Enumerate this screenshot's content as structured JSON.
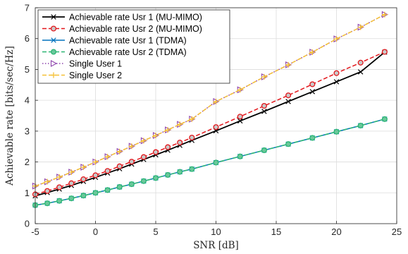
{
  "chart_data": {
    "type": "line",
    "title": "",
    "xlabel": "SNR [dB]",
    "ylabel": "Achievable rate [bits/sec/Hz]",
    "xlim": [
      -5,
      25
    ],
    "ylim": [
      0,
      7
    ],
    "xticks": [
      "-5",
      "0",
      "5",
      "10",
      "15",
      "20",
      "25"
    ],
    "yticks": [
      "0",
      "1",
      "2",
      "3",
      "4",
      "5",
      "6",
      "7"
    ],
    "grid": true,
    "legend_position": "top-left",
    "series": [
      {
        "name": "Achievable rate Usr 1 (MU-MIMO)",
        "color": "#000000",
        "line": "solid",
        "marker": "x",
        "x": [
          -5,
          -4,
          -3,
          -2,
          -1,
          0,
          1,
          2,
          3,
          4,
          5,
          6,
          7,
          8,
          10,
          12,
          14,
          16,
          18,
          20,
          22,
          24
        ],
        "y": [
          0.9,
          1.01,
          1.12,
          1.24,
          1.37,
          1.5,
          1.64,
          1.78,
          1.93,
          2.08,
          2.23,
          2.38,
          2.54,
          2.7,
          3.01,
          3.33,
          3.64,
          3.96,
          4.28,
          4.6,
          4.92,
          5.56
        ]
      },
      {
        "name": "Achievable rate Usr 2 (MU-MIMO)",
        "color": "#e3161b",
        "line": "dashed",
        "marker": "circle",
        "x": [
          -5,
          -4,
          -3,
          -2,
          -1,
          0,
          1,
          2,
          3,
          4,
          5,
          6,
          7,
          8,
          10,
          12,
          14,
          16,
          18,
          20,
          22,
          24
        ],
        "y": [
          0.95,
          1.06,
          1.18,
          1.31,
          1.44,
          1.57,
          1.71,
          1.86,
          2.01,
          2.16,
          2.32,
          2.48,
          2.63,
          2.79,
          3.13,
          3.47,
          3.82,
          4.16,
          4.52,
          4.88,
          5.22,
          5.57
        ]
      },
      {
        "name": "Achievable rate Usr 1 (TDMA)",
        "color": "#0072bd",
        "line": "solid",
        "marker": "x",
        "x": [
          -5,
          -4,
          -3,
          -2,
          -1,
          0,
          1,
          2,
          3,
          4,
          5,
          6,
          7,
          8,
          10,
          12,
          14,
          16,
          18,
          20,
          22,
          24
        ],
        "y": [
          0.6,
          0.66,
          0.74,
          0.82,
          0.91,
          1.0,
          1.09,
          1.19,
          1.28,
          1.38,
          1.48,
          1.58,
          1.68,
          1.77,
          1.98,
          2.18,
          2.38,
          2.58,
          2.78,
          2.98,
          3.18,
          3.39
        ]
      },
      {
        "name": "Achievable rate Usr 2 (TDMA)",
        "color": "#2bb673",
        "line": "dashed",
        "marker": "circle",
        "x": [
          -5,
          -4,
          -3,
          -2,
          -1,
          0,
          1,
          2,
          3,
          4,
          5,
          6,
          7,
          8,
          10,
          12,
          14,
          16,
          18,
          20,
          22,
          24
        ],
        "y": [
          0.6,
          0.66,
          0.74,
          0.82,
          0.91,
          1.0,
          1.09,
          1.19,
          1.28,
          1.38,
          1.48,
          1.58,
          1.68,
          1.77,
          1.98,
          2.18,
          2.38,
          2.58,
          2.78,
          2.98,
          3.18,
          3.39
        ]
      },
      {
        "name": "Single User 1",
        "color": "#8e44ad",
        "line": "dotted",
        "marker": "triangle-right",
        "x": [
          -5,
          -4,
          -3,
          -2,
          -1,
          0,
          1,
          2,
          3,
          4,
          5,
          6,
          7,
          8,
          10,
          12,
          14,
          16,
          18,
          20,
          22,
          24
        ],
        "y": [
          1.22,
          1.36,
          1.51,
          1.67,
          1.83,
          2.0,
          2.17,
          2.34,
          2.51,
          2.69,
          2.86,
          3.04,
          3.22,
          3.39,
          3.96,
          4.34,
          4.76,
          5.15,
          5.56,
          5.99,
          6.37,
          6.78
        ]
      },
      {
        "name": "Single User 2",
        "color": "#f5c034",
        "line": "dashed",
        "marker": "plus",
        "x": [
          -5,
          -4,
          -3,
          -2,
          -1,
          0,
          1,
          2,
          3,
          4,
          5,
          6,
          7,
          8,
          10,
          12,
          14,
          16,
          18,
          20,
          22,
          24
        ],
        "y": [
          1.22,
          1.36,
          1.51,
          1.67,
          1.83,
          2.0,
          2.17,
          2.34,
          2.51,
          2.69,
          2.86,
          3.04,
          3.22,
          3.39,
          3.96,
          4.34,
          4.76,
          5.15,
          5.56,
          5.99,
          6.37,
          6.78
        ]
      }
    ]
  }
}
